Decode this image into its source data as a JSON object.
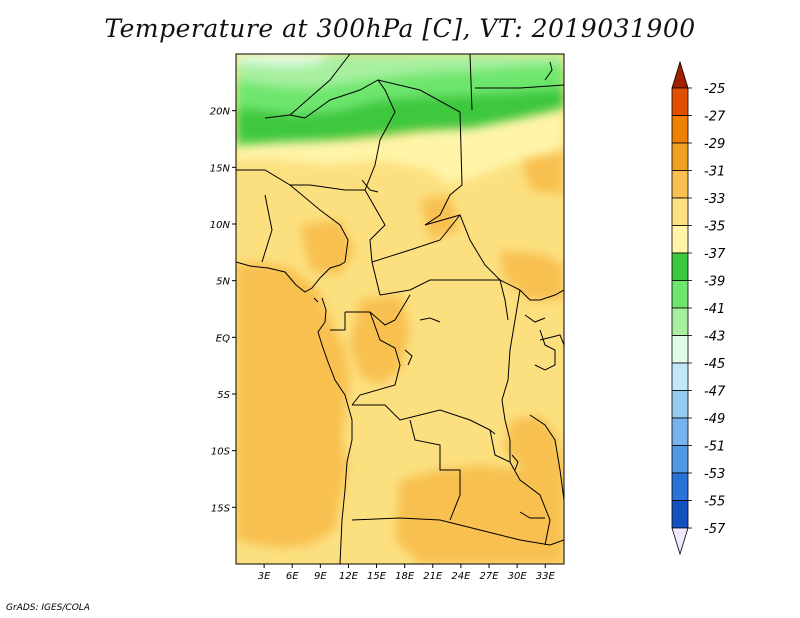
{
  "title": "Temperature at 300hPa [C], VT: 2019031900",
  "credit": "GrADS: IGES/COLA",
  "map": {
    "lat_labels": [
      "20N",
      "15N",
      "10N",
      "5N",
      "EQ",
      "5S",
      "10S",
      "15S"
    ],
    "lon_labels": [
      "3E",
      "6E",
      "9E",
      "12E",
      "15E",
      "18E",
      "21E",
      "24E",
      "27E",
      "30E",
      "33E"
    ],
    "lon_range": [
      0,
      35
    ],
    "lat_range": [
      -20,
      25
    ]
  },
  "colorbar": {
    "labels": [
      "-25",
      "-27",
      "-29",
      "-31",
      "-33",
      "-35",
      "-37",
      "-39",
      "-41",
      "-43",
      "-45",
      "-47",
      "-49",
      "-51",
      "-53",
      "-55",
      "-57"
    ],
    "colors": [
      "#a02000",
      "#e05000",
      "#f08000",
      "#f0a020",
      "#f8c050",
      "#fce080",
      "#fff4a8",
      "#3cc83c",
      "#6ee66e",
      "#a8f0a0",
      "#e0fce8",
      "#c0e6fa",
      "#96ccf2",
      "#76b4ee",
      "#5098e4",
      "#2a74d8",
      "#1450c0",
      "#082a90",
      "#f0e8ff"
    ]
  }
}
